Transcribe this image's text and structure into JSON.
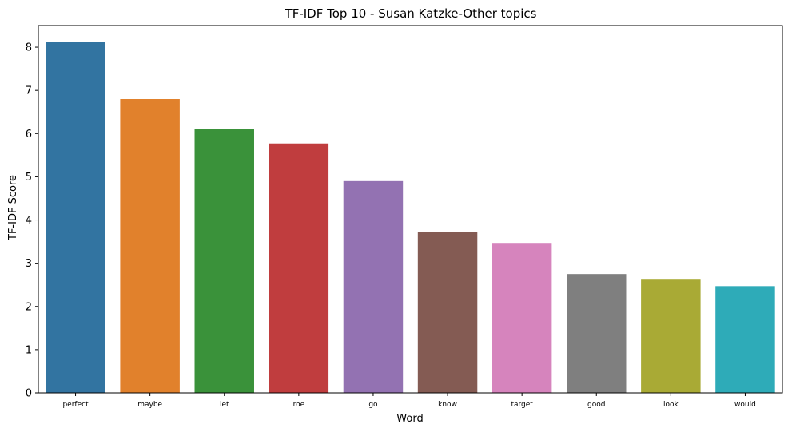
{
  "chart_data": {
    "type": "bar",
    "title": "TF-IDF Top 10 - Susan Katzke-Other topics",
    "xlabel": "Word",
    "ylabel": "TF-IDF Score",
    "categories": [
      "perfect",
      "maybe",
      "let",
      "roe",
      "go",
      "know",
      "target",
      "good",
      "look",
      "would"
    ],
    "values": [
      8.12,
      6.8,
      6.1,
      5.77,
      4.9,
      3.72,
      3.47,
      2.75,
      2.62,
      2.47
    ],
    "colors": [
      "#3274a1",
      "#e1812c",
      "#3a923a",
      "#c03d3e",
      "#9372b2",
      "#845b53",
      "#d684bd",
      "#7f7f7f",
      "#a9aa35",
      "#2eabb8"
    ],
    "ylim": [
      0,
      8.5
    ],
    "yticks": [
      0,
      1,
      2,
      3,
      4,
      5,
      6,
      7,
      8
    ],
    "grid": false,
    "legend": "none"
  }
}
